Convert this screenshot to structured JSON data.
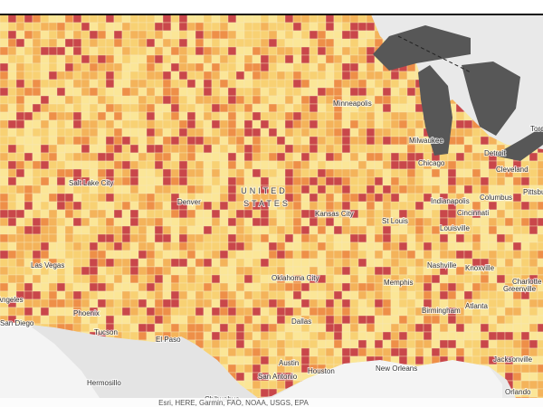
{
  "map": {
    "country_label": [
      "UNITED",
      "STATES"
    ],
    "places": [
      "Minneapolis",
      "Milwaukee",
      "Chicago",
      "Detroit",
      "Cleveland",
      "Toronto",
      "Salt Lake City",
      "Denver",
      "Kansas City",
      "St Louis",
      "Indianapolis",
      "Columbus",
      "Pittsburgh",
      "Cincinnati",
      "Louisville",
      "Nashville",
      "Knoxville",
      "Charlotte",
      "Greenville",
      "Las Vegas",
      "Los Angeles",
      "San Diego",
      "Phoenix",
      "Tucson",
      "El Paso",
      "Oklahoma City",
      "Memphis",
      "Birmingham",
      "Atlanta",
      "Dallas",
      "Austin",
      "Houston",
      "San Antonio",
      "New Orleans",
      "Jacksonville",
      "Orlando",
      "Hermosillo",
      "Chihuahua"
    ],
    "attribution": "Esri, HERE, Garmin, FAO, NOAA, USGS, EPA"
  }
}
